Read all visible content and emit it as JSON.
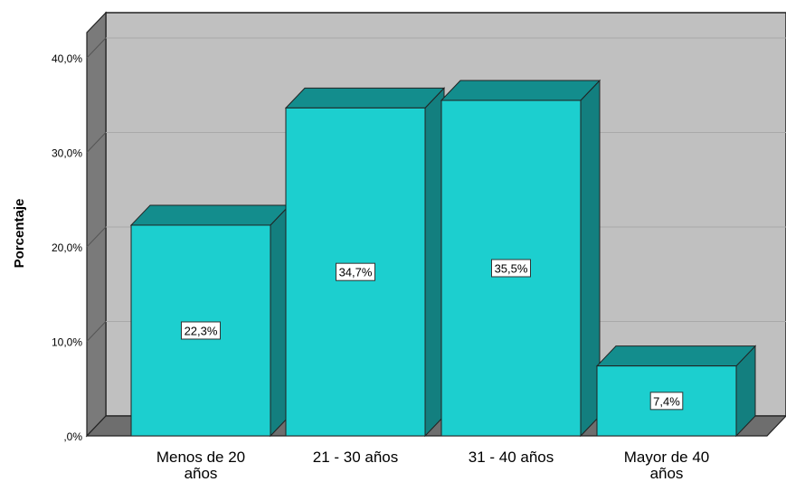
{
  "chart_data": {
    "type": "bar",
    "categories": [
      [
        "Menos de 20",
        "años"
      ],
      [
        "21 - 30 años"
      ],
      [
        "31 - 40 años"
      ],
      [
        "Mayor de 40",
        "años"
      ]
    ],
    "values": [
      22.3,
      34.7,
      35.5,
      7.4
    ],
    "data_labels": [
      "22,3%",
      "34,7%",
      "35,5%",
      "7,4%"
    ],
    "ylabel": "Porcentaje",
    "xlabel": "",
    "ylim": [
      0,
      45
    ],
    "yticks": [
      {
        "value": 0,
        "label": ",0%"
      },
      {
        "value": 10,
        "label": "10,0%"
      },
      {
        "value": 20,
        "label": "20,0%"
      },
      {
        "value": 30,
        "label": "30,0%"
      },
      {
        "value": 40,
        "label": "40,0%"
      }
    ],
    "grid": true,
    "style": "3d",
    "colors": {
      "bar_front": "#1ccfcf",
      "bar_top": "#138d8d",
      "bar_side": "#137f7f",
      "wall": "#c0c0c0",
      "left_wall": "#7a7a7a",
      "floor": "#6e6e6e",
      "gridline": "#a9a9a9"
    }
  }
}
